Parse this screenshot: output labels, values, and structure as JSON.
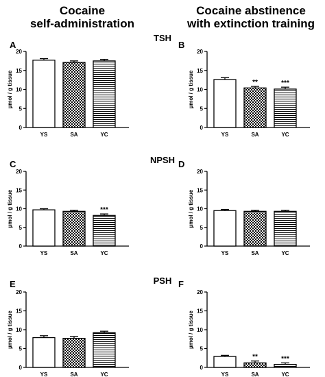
{
  "headers": {
    "left_line1": "Cocaine",
    "left_line2": "self-administration",
    "right_line1": "Cocaine abstinence",
    "right_line2": "with extinction training"
  },
  "sections": [
    "TSH",
    "NPSH",
    "PSH"
  ],
  "chart_data": [
    {
      "panel": "A",
      "type": "bar",
      "categories": [
        "YS",
        "SA",
        "YC"
      ],
      "values": [
        17.7,
        17.1,
        17.5
      ],
      "errors": [
        0.4,
        0.4,
        0.4
      ],
      "significance": [
        "",
        "",
        ""
      ],
      "ylabel": "µmol / g tissue",
      "ylim": [
        0,
        20
      ],
      "yticks": [
        0,
        5,
        10,
        15,
        20
      ]
    },
    {
      "panel": "B",
      "type": "bar",
      "categories": [
        "YS",
        "SA",
        "YC"
      ],
      "values": [
        12.6,
        10.4,
        10.1
      ],
      "errors": [
        0.5,
        0.4,
        0.5
      ],
      "significance": [
        "",
        "**",
        "***"
      ],
      "ylabel": "µmol / g tissue",
      "ylim": [
        0,
        20
      ],
      "yticks": [
        0,
        5,
        10,
        15,
        20
      ]
    },
    {
      "panel": "C",
      "type": "bar",
      "categories": [
        "YS",
        "SA",
        "YC"
      ],
      "values": [
        9.7,
        9.3,
        8.2
      ],
      "errors": [
        0.3,
        0.3,
        0.4
      ],
      "significance": [
        "",
        "",
        "***"
      ],
      "ylabel": "µmol / g tissue",
      "ylim": [
        0,
        20
      ],
      "yticks": [
        0,
        5,
        10,
        15,
        20
      ]
    },
    {
      "panel": "D",
      "type": "bar",
      "categories": [
        "YS",
        "SA",
        "YC"
      ],
      "values": [
        9.5,
        9.3,
        9.3
      ],
      "errors": [
        0.3,
        0.3,
        0.3
      ],
      "significance": [
        "",
        "",
        ""
      ],
      "ylabel": "µmol / g tissue",
      "ylim": [
        0,
        20
      ],
      "yticks": [
        0,
        5,
        10,
        15,
        20
      ]
    },
    {
      "panel": "E",
      "type": "bar",
      "categories": [
        "YS",
        "SA",
        "YC"
      ],
      "values": [
        7.9,
        7.7,
        9.2
      ],
      "errors": [
        0.5,
        0.5,
        0.4
      ],
      "significance": [
        "",
        "",
        ""
      ],
      "ylabel": "µmol / g tissue",
      "ylim": [
        0,
        20
      ],
      "yticks": [
        0,
        5,
        10,
        15,
        20
      ]
    },
    {
      "panel": "F",
      "type": "bar",
      "categories": [
        "YS",
        "SA",
        "YC"
      ],
      "values": [
        2.9,
        1.2,
        0.8
      ],
      "errors": [
        0.3,
        0.5,
        0.4
      ],
      "significance": [
        "",
        "**",
        "***"
      ],
      "ylabel": "µmol / g tissue",
      "ylim": [
        0,
        20
      ],
      "yticks": [
        0,
        5,
        10,
        15,
        20
      ]
    }
  ]
}
